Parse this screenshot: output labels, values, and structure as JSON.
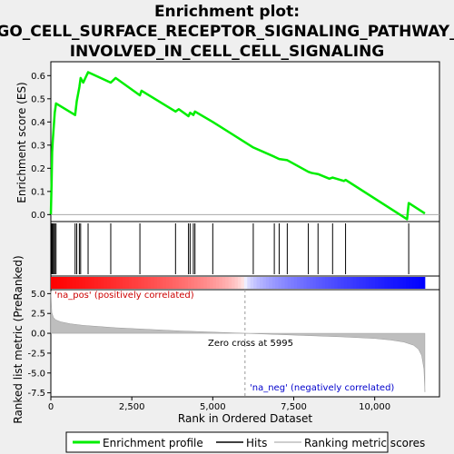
{
  "chart_data": {
    "type": "line",
    "title_lines": [
      "Enrichment plot:",
      "GO_CELL_SURFACE_RECEPTOR_SIGNALING_PATHWAY_",
      "INVOLVED_IN_CELL_CELL_SIGNALING"
    ],
    "xlabel": "Rank in Ordered Dataset",
    "ylabel_top": "Enrichment score (ES)",
    "ylabel_bottom": "Ranked list metric (PreRanked)",
    "xlim": [
      0,
      12000
    ],
    "x_ticks": [
      0,
      2500,
      5000,
      7500,
      10000
    ],
    "x_tick_labels": [
      "0",
      "2,500",
      "5,000",
      "7,500",
      "10,000"
    ],
    "es_ylim": [
      -0.03,
      0.66
    ],
    "es_ticks": [
      0.0,
      0.1,
      0.2,
      0.3,
      0.4,
      0.5,
      0.6
    ],
    "es_tick_labels": [
      "0.0",
      "0.1",
      "0.2",
      "0.3",
      "0.4",
      "0.5",
      "0.6"
    ],
    "metric_ylim": [
      -8,
      5.5
    ],
    "metric_ticks": [
      5.0,
      2.5,
      0.0,
      -2.5,
      -5.0,
      -7.5
    ],
    "metric_tick_labels": [
      "5.0",
      "2.5",
      "0.0",
      "-2.5",
      "-5.0",
      "-7.5"
    ],
    "series": [
      {
        "name": "Enrichment profile",
        "color": "#00ee00",
        "x": [
          0,
          25,
          40,
          60,
          90,
          120,
          160,
          750,
          800,
          880,
          920,
          1000,
          1150,
          1850,
          2000,
          2750,
          2800,
          3850,
          3950,
          4250,
          4300,
          4400,
          4450,
          5000,
          6250,
          6900,
          7050,
          7300,
          7950,
          8050,
          8250,
          8600,
          8700,
          9050,
          9100,
          11000,
          11050,
          11550
        ],
        "y": [
          0.0,
          0.15,
          0.27,
          0.32,
          0.38,
          0.44,
          0.48,
          0.43,
          0.49,
          0.55,
          0.59,
          0.57,
          0.615,
          0.57,
          0.59,
          0.515,
          0.535,
          0.445,
          0.455,
          0.425,
          0.44,
          0.43,
          0.445,
          0.4,
          0.29,
          0.25,
          0.24,
          0.235,
          0.185,
          0.18,
          0.175,
          0.155,
          0.16,
          0.145,
          0.15,
          -0.02,
          0.05,
          0.005
        ]
      }
    ],
    "hits": [
      20,
      40,
      60,
      90,
      120,
      160,
      750,
      800,
      880,
      920,
      1150,
      1850,
      2750,
      3850,
      4250,
      4300,
      4400,
      4450,
      5000,
      6250,
      6900,
      7050,
      7300,
      7950,
      8250,
      8700,
      9100,
      11050
    ],
    "metric_curve": {
      "x": [
        0,
        30,
        80,
        150,
        300,
        600,
        1000,
        1500,
        2000,
        3000,
        4000,
        5000,
        5995,
        7000,
        8000,
        9000,
        10000,
        10500,
        10900,
        11200,
        11350,
        11450,
        11520,
        11550
      ],
      "y": [
        5.3,
        2.6,
        2.0,
        1.7,
        1.45,
        1.2,
        1.0,
        0.85,
        0.7,
        0.5,
        0.3,
        0.15,
        0.0,
        -0.15,
        -0.3,
        -0.45,
        -0.65,
        -0.85,
        -1.1,
        -1.5,
        -2.0,
        -2.8,
        -4.5,
        -7.4
      ]
    },
    "heatbar": {
      "length": 11550,
      "zero_cross": 5995
    },
    "annotations": {
      "pos_label": "'na_pos' (positively correlated)",
      "neg_label": "'na_neg' (negatively correlated)",
      "zero_cross_label": "Zero cross at 5995"
    },
    "legend": {
      "placement": "bottom",
      "items": [
        {
          "label": "Enrichment profile",
          "color": "#00ee00"
        },
        {
          "label": "Hits",
          "color": "#000000"
        },
        {
          "label": "Ranking metric scores",
          "color": "#bebebe"
        }
      ]
    }
  }
}
